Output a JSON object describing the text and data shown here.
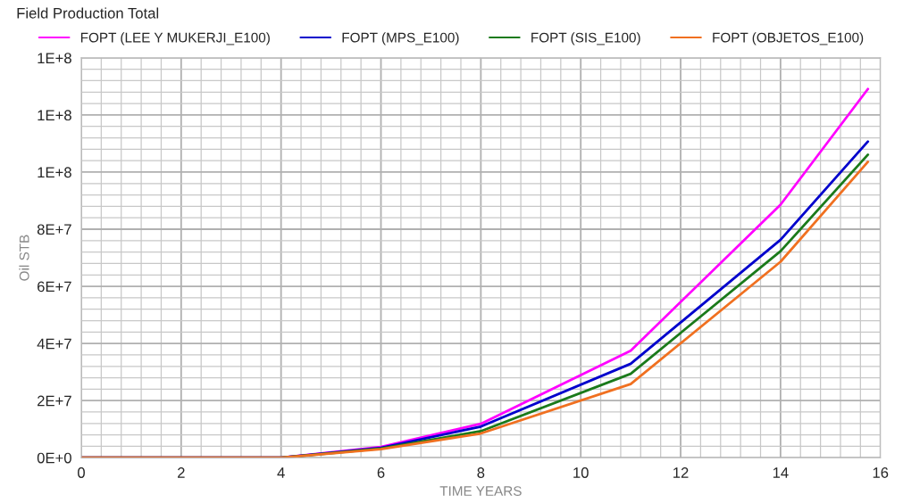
{
  "chart_data": {
    "type": "line",
    "title": "Field Production Total",
    "xlabel": "TIME YEARS",
    "ylabel": "Oil STB",
    "x": [
      0,
      4,
      6,
      8,
      11,
      14,
      15.75
    ],
    "series": [
      {
        "name": "FOPT (LEE Y MUKERJI_E100)",
        "color": "#ff00ff",
        "values": [
          0,
          0,
          3800000,
          11900000,
          37500000,
          88600000,
          129100000
        ]
      },
      {
        "name": "FOPT (MPS_E100)",
        "color": "#0000cc",
        "values": [
          0,
          0,
          3500000,
          10900000,
          32900000,
          76300000,
          110700000
        ]
      },
      {
        "name": "FOPT (SIS_E100)",
        "color": "#1a7a1a",
        "values": [
          0,
          0,
          3200000,
          9300000,
          29400000,
          72300000,
          106100000
        ]
      },
      {
        "name": "FOPT (OBJETOS_E100)",
        "color": "#f07020",
        "values": [
          0,
          0,
          3000000,
          8500000,
          25800000,
          68600000,
          103600000
        ]
      }
    ],
    "xlim": [
      0,
      16
    ],
    "xticks": [
      0,
      2,
      4,
      6,
      8,
      10,
      12,
      14,
      16
    ],
    "ylim": [
      0,
      140000000
    ],
    "yticks": [
      {
        "value": 0,
        "label": "0E+0"
      },
      {
        "value": 20000000,
        "label": "2E+7"
      },
      {
        "value": 40000000,
        "label": "4E+7"
      },
      {
        "value": 60000000,
        "label": "6E+7"
      },
      {
        "value": 80000000,
        "label": "8E+7"
      },
      {
        "value": 100000000,
        "label": "1E+8"
      },
      {
        "value": 120000000,
        "label": "1E+8"
      },
      {
        "value": 140000000,
        "label": "1E+8"
      }
    ],
    "grid": true,
    "legend": "top",
    "marker": "none",
    "line_style": "solid"
  }
}
